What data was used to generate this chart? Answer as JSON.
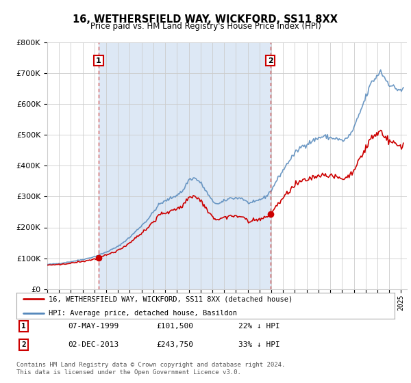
{
  "title": "16, WETHERSFIELD WAY, WICKFORD, SS11 8XX",
  "subtitle": "Price paid vs. HM Land Registry's House Price Index (HPI)",
  "legend_line1": "16, WETHERSFIELD WAY, WICKFORD, SS11 8XX (detached house)",
  "legend_line2": "HPI: Average price, detached house, Basildon",
  "sale1_label": "1",
  "sale1_date": "07-MAY-1999",
  "sale1_price": "£101,500",
  "sale1_hpi": "22% ↓ HPI",
  "sale1_year": 1999.36,
  "sale1_value": 101500,
  "sale2_label": "2",
  "sale2_date": "02-DEC-2013",
  "sale2_price": "£243,750",
  "sale2_hpi": "33% ↓ HPI",
  "sale2_year": 2013.92,
  "sale2_value": 243750,
  "red_color": "#cc0000",
  "blue_color": "#5588bb",
  "shade_color": "#dde8f5",
  "dashed_red": "#cc4444",
  "background_color": "#ffffff",
  "grid_color": "#cccccc",
  "ylim_min": 0,
  "ylim_max": 800000,
  "xlim_min": 1995,
  "xlim_max": 2025.5,
  "footer": "Contains HM Land Registry data © Crown copyright and database right 2024.\nThis data is licensed under the Open Government Licence v3.0."
}
